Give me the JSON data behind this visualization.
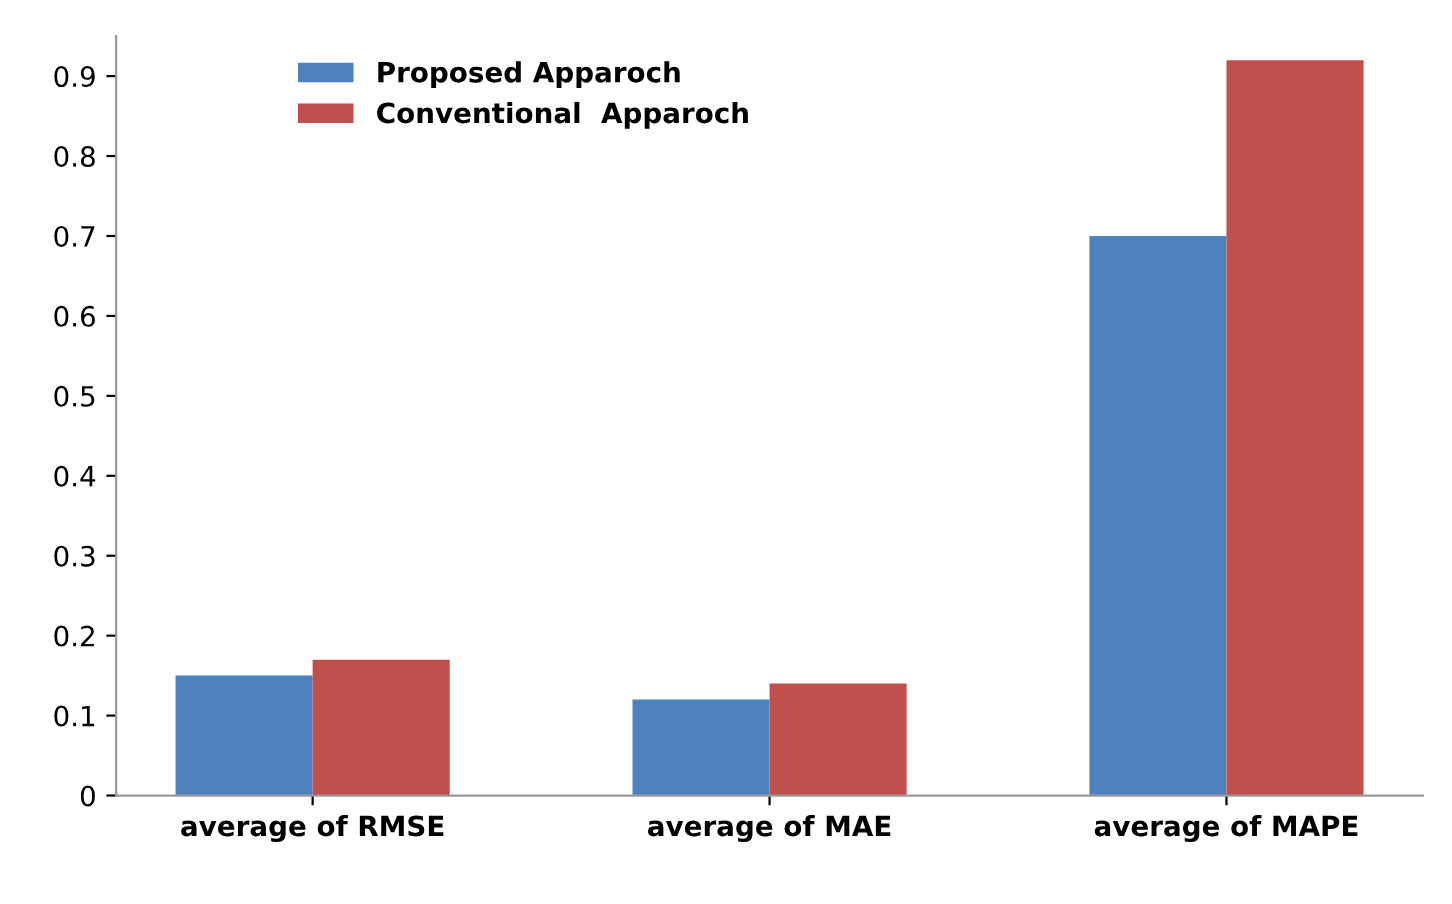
{
  "chart_data": {
    "type": "bar",
    "categories": [
      "average of RMSE",
      "average of MAE",
      "average of MAPE"
    ],
    "series": [
      {
        "name": "Proposed Apparoch",
        "color": "#4f81bd",
        "values": [
          0.15,
          0.12,
          0.7
        ]
      },
      {
        "name": "Conventional  Apparoch",
        "color": "#c0504d",
        "values": [
          0.17,
          0.14,
          0.92
        ]
      }
    ],
    "ylim": [
      0,
      0.95
    ],
    "yticks": [
      0,
      0.1,
      0.2,
      0.3,
      0.4,
      0.5,
      0.6,
      0.7,
      0.8,
      0.9
    ],
    "legend": "top left",
    "grid": false
  }
}
